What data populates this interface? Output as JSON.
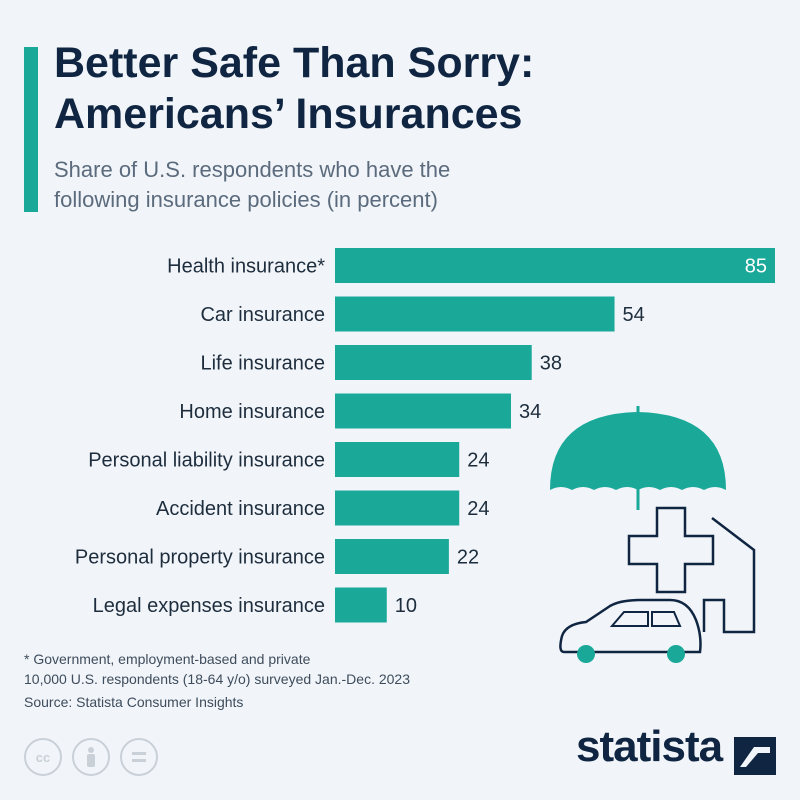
{
  "header": {
    "title_line1": "Better Safe Than Sorry:",
    "title_line2": "Americans’ Insurances",
    "subtitle_line1": "Share of U.S. respondents who have the",
    "subtitle_line2": "following insurance policies (in percent)"
  },
  "chart_data": {
    "type": "bar",
    "orientation": "horizontal",
    "categories": [
      "Health insurance*",
      "Car insurance",
      "Life insurance",
      "Home insurance",
      "Personal liability insurance",
      "Accident insurance",
      "Personal property insurance",
      "Legal expenses insurance"
    ],
    "values": [
      85,
      54,
      38,
      34,
      24,
      24,
      22,
      10
    ],
    "title": "Better Safe Than Sorry: Americans’ Insurances",
    "subtitle": "Share of U.S. respondents who have the following insurance policies (in percent)",
    "xlim": [
      0,
      85
    ],
    "grid": false,
    "bar_color": "#1aa899"
  },
  "footer": {
    "note_line1": "* Government, employment-based and private",
    "note_line2": "10,000 U.S. respondents (18-64 y/o) surveyed Jan.-Dec. 2023",
    "source": "Source: Statista Consumer Insights",
    "brand": "statista"
  },
  "icons": [
    "cc-icon",
    "attribution-icon",
    "noderivs-icon",
    "umbrella-icon",
    "medical-cross-icon",
    "house-icon",
    "car-icon",
    "statista-logo-icon"
  ],
  "colors": {
    "accent": "#1aa899",
    "navy": "#0f2541",
    "background": "#f1f5f9"
  }
}
